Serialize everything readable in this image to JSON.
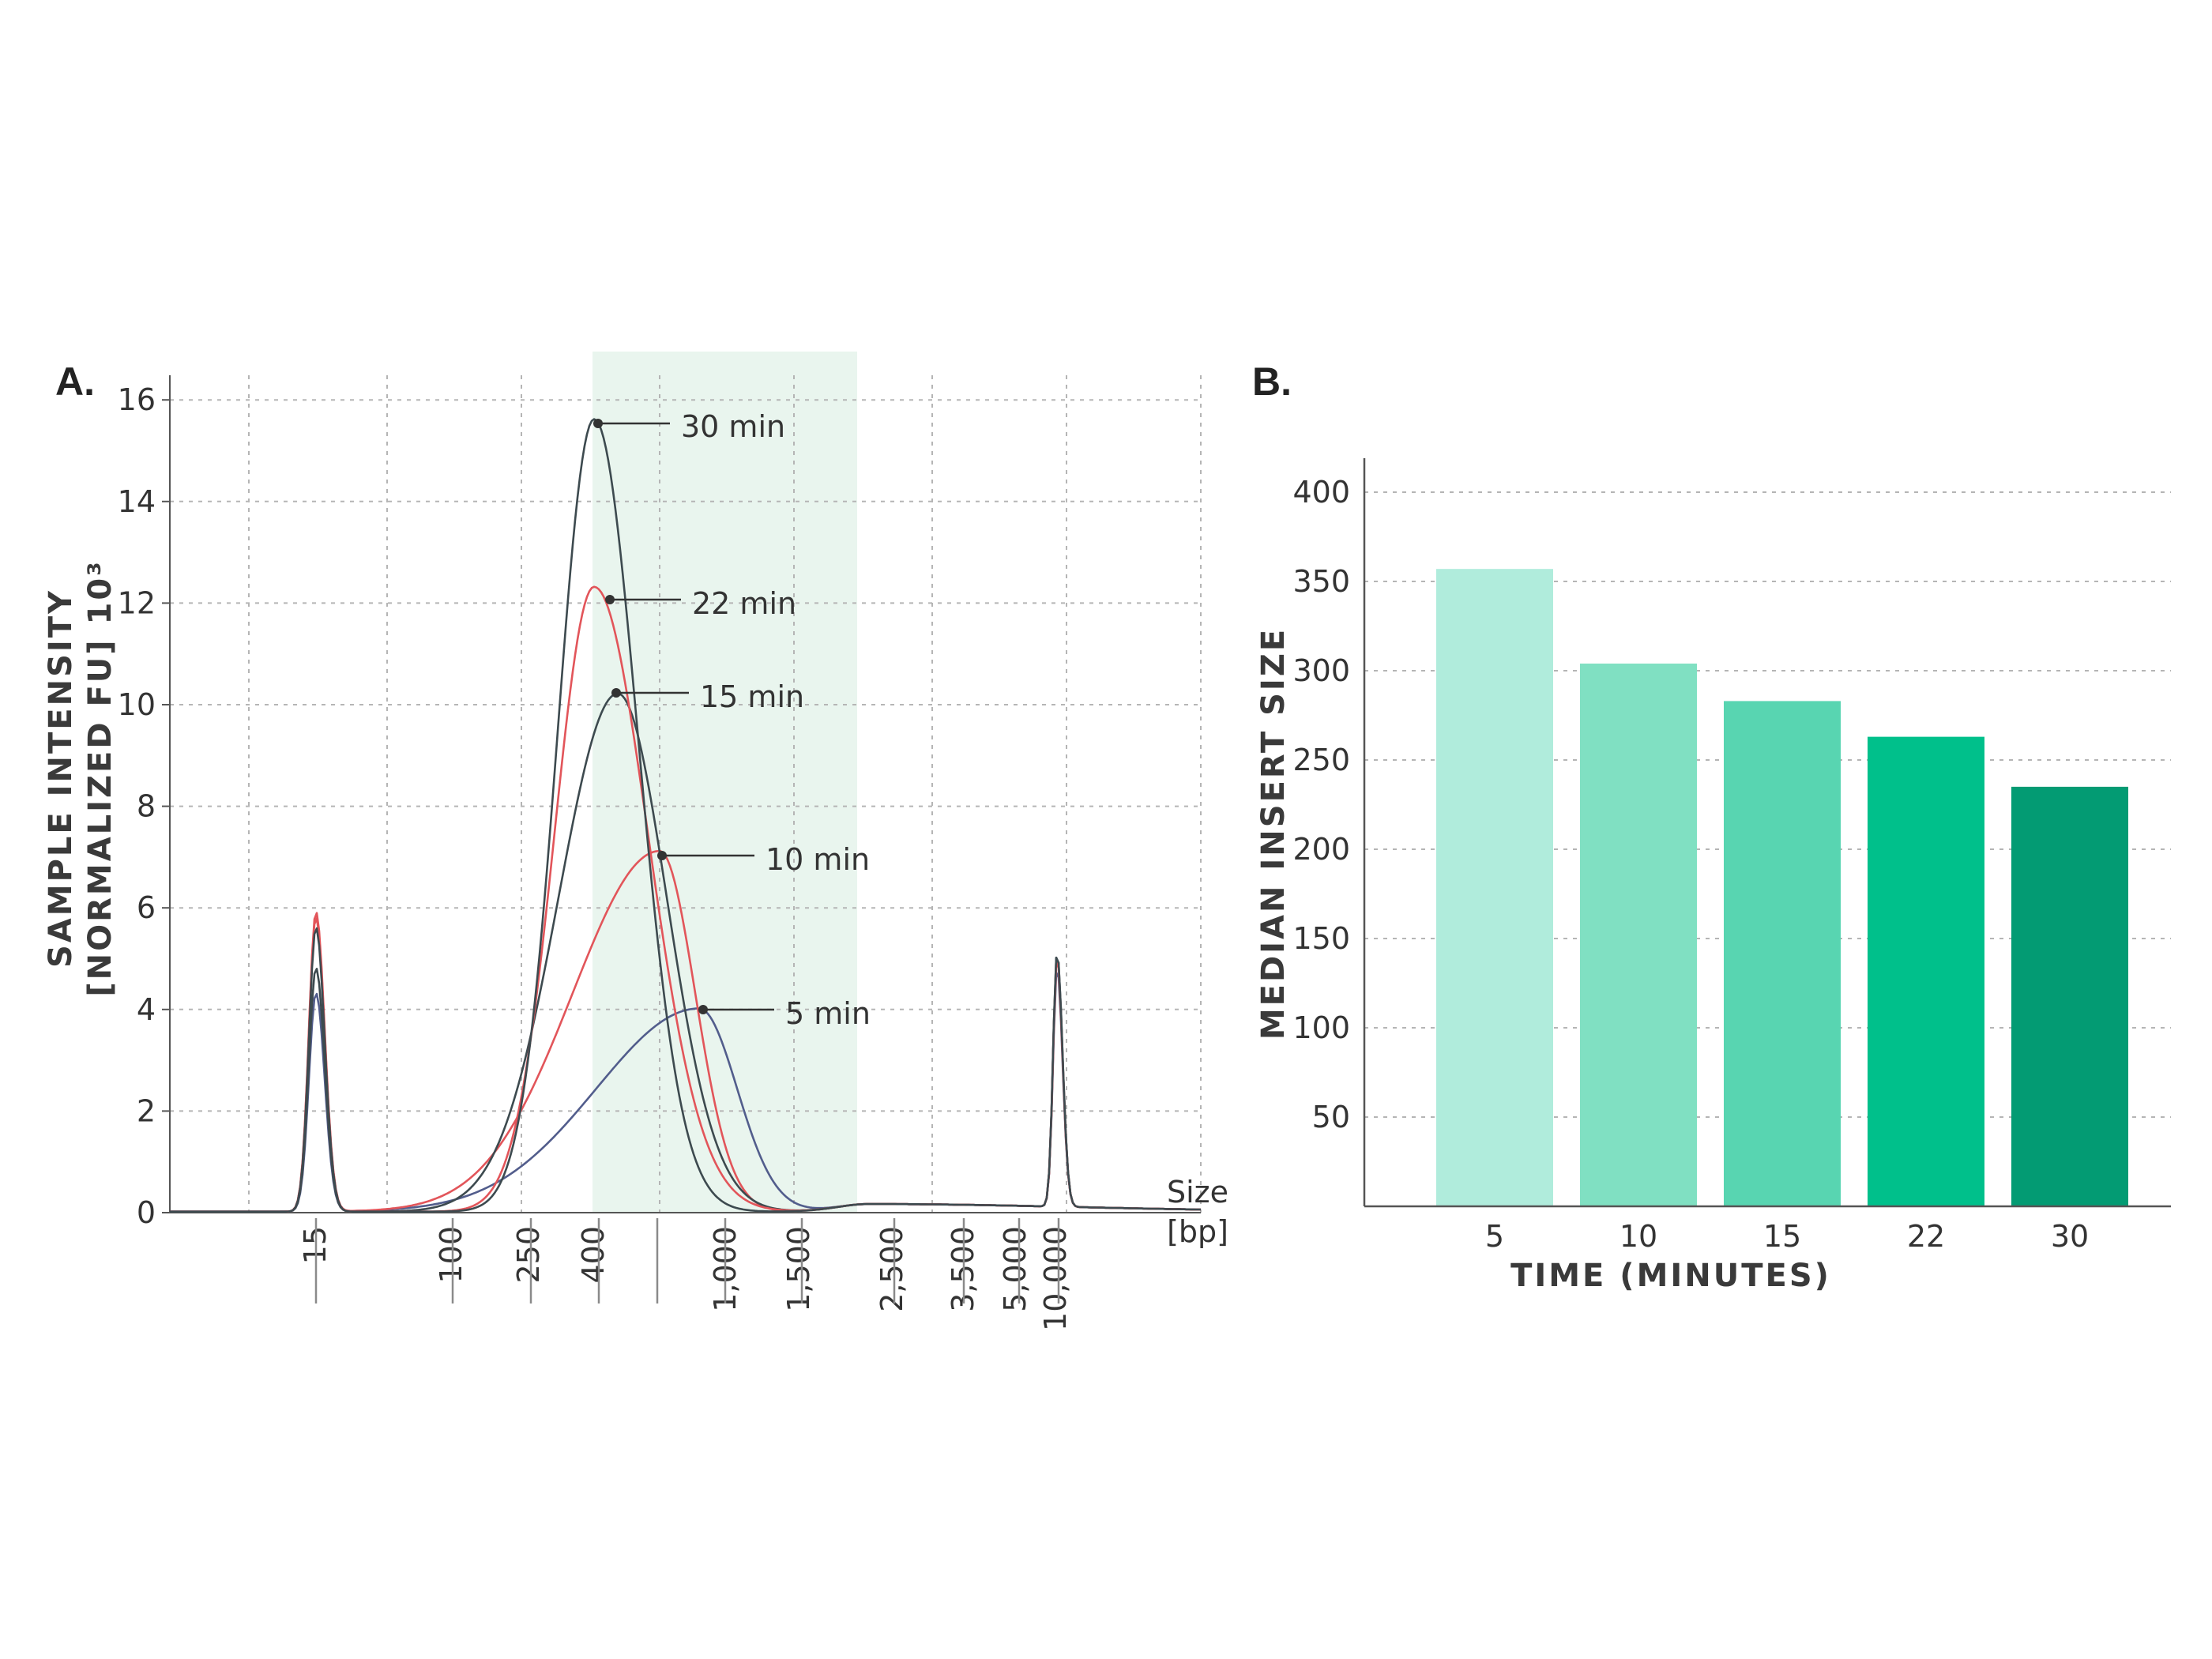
{
  "panels": {
    "a": {
      "label": "A."
    },
    "b": {
      "label": "B."
    }
  },
  "colors": {
    "shade": "#e9f5ee",
    "grid": "#b5b5b5",
    "axis": "#555555",
    "trace_gray": "#3d4a4f",
    "trace_red": "#e2555a",
    "trace_blue": "#525d8c",
    "bars": [
      "#b0ecdc",
      "#80e0c2",
      "#58d5b1",
      "#00c08b",
      "#039b73"
    ]
  },
  "chart_data": [
    {
      "type": "line",
      "panel": "A.",
      "ylabel_line1": "SAMPLE INTENSITY",
      "ylabel_line2": "[NORMALIZED FU] 10³",
      "xlabel_line1": "Size",
      "xlabel_line2": "[bp]",
      "ylim": [
        0,
        16
      ],
      "yticks": [
        "0",
        "2",
        "4",
        "6",
        "8",
        "10",
        "12",
        "14",
        "16"
      ],
      "x_ticks": [
        "15",
        "100",
        "250",
        "400",
        "1,000",
        "1,500",
        "2,500",
        "3,500",
        "5,000",
        "10,000"
      ],
      "x_scale": "nonlinear (electropherogram size ladder)",
      "highlight_band": "≈ 400 – 2,500 bp",
      "grid": true,
      "series": [
        {
          "name": "30 min",
          "peak_bp": 400,
          "peak_height": 15.6,
          "color": "#3d4a4f"
        },
        {
          "name": "22 min",
          "peak_bp": 400,
          "peak_height": 12.3,
          "color": "#e2555a"
        },
        {
          "name": "15 min",
          "peak_bp": 450,
          "peak_height": 10.2,
          "color": "#3d4a4f"
        },
        {
          "name": "10 min",
          "peak_bp": 550,
          "peak_height": 7.1,
          "color": "#e2555a"
        },
        {
          "name": "5 min",
          "peak_bp": 800,
          "peak_height": 4.0,
          "color": "#525d8c"
        }
      ],
      "marker_peaks": [
        {
          "bp": "15",
          "height": 6.0
        },
        {
          "bp": "10,000",
          "height": 5.0
        }
      ]
    },
    {
      "type": "bar",
      "panel": "B.",
      "categories": [
        "5",
        "10",
        "15",
        "22",
        "30"
      ],
      "values": [
        357,
        304,
        283,
        263,
        235
      ],
      "xlabel": "TIME (MINUTES)",
      "ylabel": "MEDIAN INSERT SIZE",
      "ylim": [
        0,
        425
      ],
      "yticks": [
        "50",
        "100",
        "150",
        "200",
        "250",
        "300",
        "350",
        "400"
      ],
      "grid": true
    }
  ]
}
